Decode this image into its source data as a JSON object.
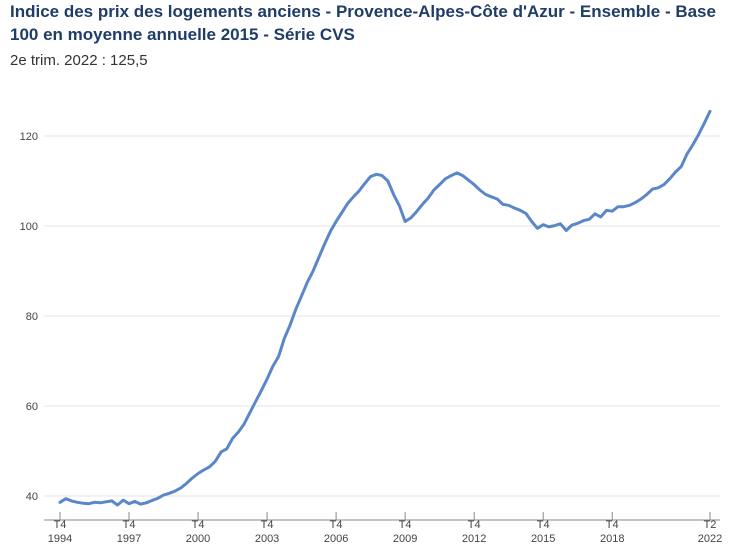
{
  "title": "Indice des prix des logements anciens - Provence-Alpes-Côte d'Azur - Ensemble - Base 100 en moyenne annuelle 2015 - Série CVS",
  "subtitle": "2e trim. 2022 : 125,5",
  "colors": {
    "line": "#5b87c8",
    "grid": "#e6e6e6",
    "title": "#1f3d66"
  },
  "chart_data": {
    "type": "line",
    "title": "Indice des prix des logements anciens - Provence-Alpes-Côte d'Azur - Ensemble - Base 100 en moyenne annuelle 2015 - Série CVS",
    "xlabel": "",
    "ylabel": "",
    "ylim": [
      40,
      125.5
    ],
    "yticks": [
      40,
      60,
      80,
      100,
      120
    ],
    "grid": true,
    "xticks": [
      {
        "q": "T4",
        "year": "1994"
      },
      {
        "q": "T4",
        "year": "1997"
      },
      {
        "q": "T4",
        "year": "2000"
      },
      {
        "q": "T4",
        "year": "2003"
      },
      {
        "q": "T4",
        "year": "2006"
      },
      {
        "q": "T4",
        "year": "2009"
      },
      {
        "q": "T4",
        "year": "2012"
      },
      {
        "q": "T4",
        "year": "2015"
      },
      {
        "q": "T4",
        "year": "2018"
      },
      {
        "q": "T2",
        "year": "2022"
      }
    ],
    "x_start": "T4 1994",
    "x_end": "T2 2022",
    "values": [
      38.6,
      39.4,
      38.9,
      38.6,
      38.4,
      38.3,
      38.6,
      38.5,
      38.7,
      38.9,
      38.0,
      39.1,
      38.3,
      38.8,
      38.2,
      38.5,
      39.0,
      39.5,
      40.2,
      40.6,
      41.1,
      41.8,
      42.8,
      44.0,
      45.0,
      45.8,
      46.5,
      47.7,
      49.8,
      50.5,
      52.8,
      54.2,
      56.0,
      58.5,
      61.0,
      63.4,
      66.0,
      68.8,
      71.0,
      75.0,
      78.0,
      81.5,
      84.5,
      87.5,
      90.0,
      93.0,
      96.0,
      98.8,
      101.0,
      103.0,
      105.0,
      106.5,
      107.8,
      109.5,
      111.0,
      111.5,
      111.2,
      110.0,
      107.0,
      104.5,
      101.0,
      101.8,
      103.2,
      104.8,
      106.2,
      108.0,
      109.2,
      110.5,
      111.2,
      111.8,
      111.2,
      110.2,
      109.2,
      108.0,
      107.0,
      106.5,
      106.0,
      104.8,
      104.6,
      104.0,
      103.5,
      102.8,
      101.0,
      99.5,
      100.3,
      99.8,
      100.1,
      100.5,
      99.0,
      100.2,
      100.6,
      101.2,
      101.5,
      102.7,
      102.0,
      103.5,
      103.3,
      104.3,
      104.3,
      104.6,
      105.2,
      106.0,
      107.0,
      108.2,
      108.5,
      109.2,
      110.5,
      112.0,
      113.2,
      116.0,
      118.0,
      120.3,
      122.8,
      125.5
    ]
  }
}
